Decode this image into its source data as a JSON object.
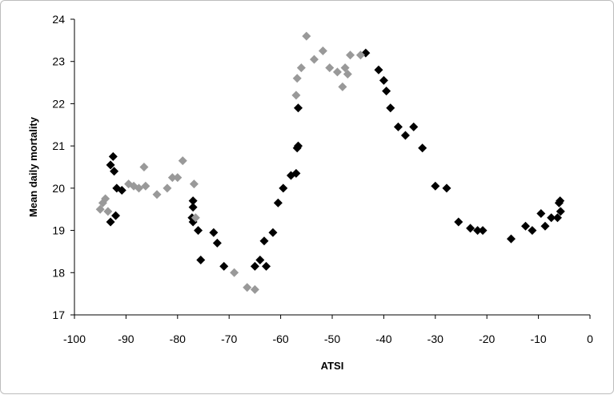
{
  "chart_data": {
    "type": "scatter",
    "title": "",
    "xlabel": "ATSI",
    "ylabel": "Mean daily mortality",
    "xlim": [
      -100,
      0
    ],
    "ylim": [
      17,
      24
    ],
    "xticks": [
      -100,
      -90,
      -80,
      -70,
      -60,
      -50,
      -40,
      -30,
      -20,
      -10,
      0
    ],
    "yticks": [
      17,
      18,
      19,
      20,
      21,
      22,
      23,
      24
    ],
    "grid": false,
    "legend": "none",
    "marker": "diamond",
    "series": [
      {
        "color": "#000000",
        "points": [
          [
            -93,
            19.2
          ],
          [
            -93,
            20.55
          ],
          [
            -92.5,
            20.75
          ],
          [
            -92.3,
            20.4
          ],
          [
            -92,
            19.35
          ],
          [
            -91.8,
            20.0
          ],
          [
            -90.8,
            19.95
          ],
          [
            -77,
            19.7
          ],
          [
            -77,
            19.55
          ],
          [
            -77.2,
            19.3
          ],
          [
            -77,
            19.2
          ],
          [
            -76,
            19.0
          ],
          [
            -75.5,
            18.3
          ],
          [
            -73,
            18.95
          ],
          [
            -72.3,
            18.7
          ],
          [
            -71,
            18.15
          ],
          [
            -65,
            18.15
          ],
          [
            -64,
            18.3
          ],
          [
            -63.2,
            18.75
          ],
          [
            -62.8,
            18.15
          ],
          [
            -61.5,
            18.95
          ],
          [
            -60.5,
            19.65
          ],
          [
            -59.5,
            20.0
          ],
          [
            -58,
            20.3
          ],
          [
            -57,
            20.35
          ],
          [
            -56.8,
            20.95
          ],
          [
            -56.6,
            21.0
          ],
          [
            -56.6,
            21.9
          ],
          [
            -43.5,
            23.2
          ],
          [
            -41,
            22.8
          ],
          [
            -40,
            22.55
          ],
          [
            -39.5,
            22.3
          ],
          [
            -38.7,
            21.9
          ],
          [
            -37.2,
            21.45
          ],
          [
            -35.8,
            21.25
          ],
          [
            -34.2,
            21.45
          ],
          [
            -32.5,
            20.95
          ],
          [
            -30,
            20.05
          ],
          [
            -27.8,
            20.0
          ],
          [
            -25.5,
            19.2
          ],
          [
            -23.2,
            19.05
          ],
          [
            -21.8,
            19.0
          ],
          [
            -20.8,
            19.0
          ],
          [
            -15.3,
            18.8
          ],
          [
            -12.5,
            19.1
          ],
          [
            -11.2,
            19.0
          ],
          [
            -9.5,
            19.4
          ],
          [
            -8.7,
            19.1
          ],
          [
            -7.5,
            19.3
          ],
          [
            -6.3,
            19.3
          ],
          [
            -6,
            19.65
          ],
          [
            -5.8,
            19.7
          ],
          [
            -5.7,
            19.45
          ]
        ]
      },
      {
        "color": "#999999",
        "points": [
          [
            -95,
            19.5
          ],
          [
            -94.5,
            19.65
          ],
          [
            -94,
            19.75
          ],
          [
            -93.5,
            19.45
          ],
          [
            -89.5,
            20.1
          ],
          [
            -88.5,
            20.05
          ],
          [
            -87.5,
            20.0
          ],
          [
            -86.5,
            20.5
          ],
          [
            -86.2,
            20.05
          ],
          [
            -84,
            19.85
          ],
          [
            -82,
            20.0
          ],
          [
            -81,
            20.25
          ],
          [
            -80,
            20.25
          ],
          [
            -79,
            20.65
          ],
          [
            -76.8,
            20.1
          ],
          [
            -76.5,
            19.3
          ],
          [
            -69,
            18.0
          ],
          [
            -66.5,
            17.65
          ],
          [
            -65,
            17.6
          ],
          [
            -57,
            22.2
          ],
          [
            -56.8,
            22.6
          ],
          [
            -56,
            22.85
          ],
          [
            -55,
            23.6
          ],
          [
            -53.5,
            23.05
          ],
          [
            -51.8,
            23.25
          ],
          [
            -50.5,
            22.85
          ],
          [
            -49,
            22.75
          ],
          [
            -48,
            22.4
          ],
          [
            -47.5,
            22.85
          ],
          [
            -47,
            22.7
          ],
          [
            -46.5,
            23.15
          ],
          [
            -44.5,
            23.15
          ]
        ]
      }
    ]
  }
}
